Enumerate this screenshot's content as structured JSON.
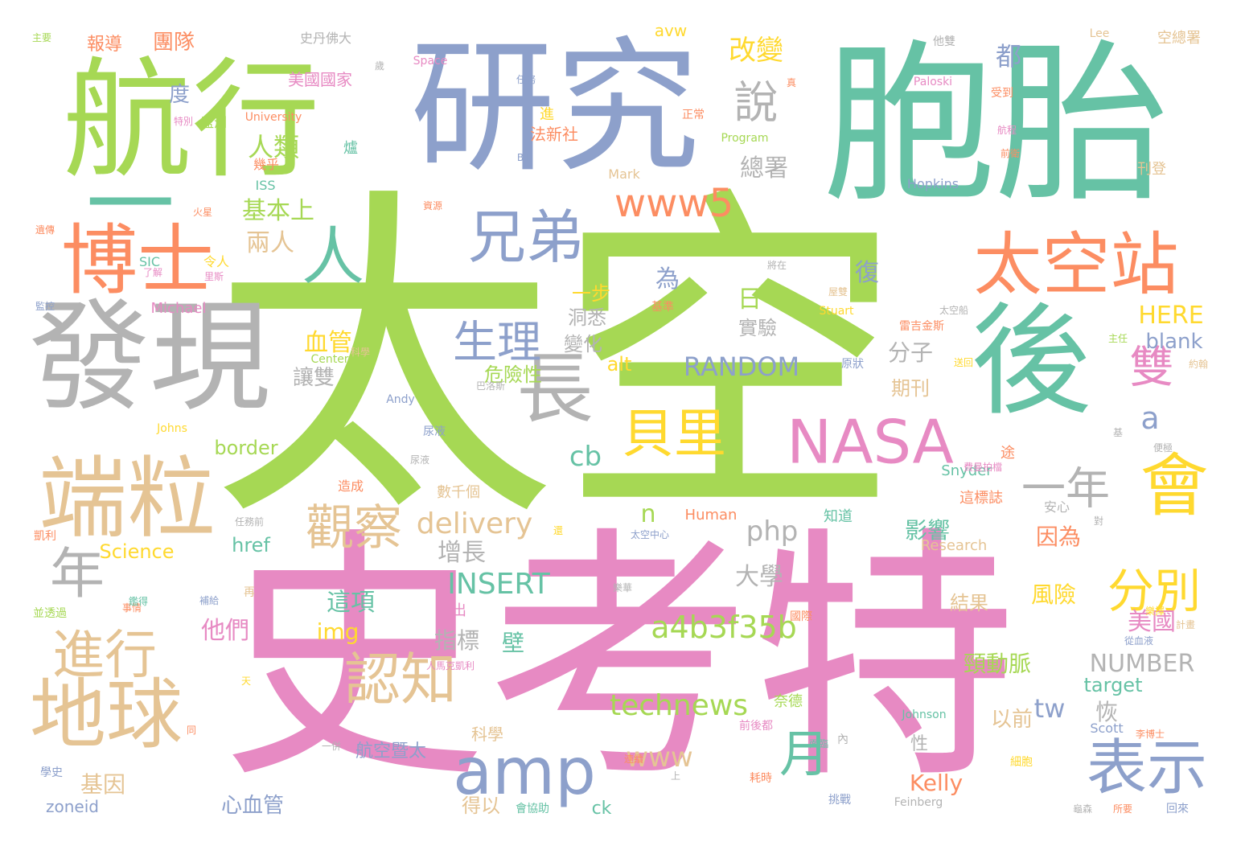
{
  "palette": {
    "green": "#a6d854",
    "purple": "#8da0cb",
    "teal": "#66c2a5",
    "orange": "#fc8d62",
    "pink": "#e78ac3",
    "tan": "#e5c494",
    "gray": "#b3b3b3",
    "yellow": "#ffd92f"
  },
  "words": [
    {
      "text": "太空",
      "color": "green"
    },
    {
      "text": "史考特",
      "color": "pink"
    },
    {
      "text": "胞胎",
      "color": "teal"
    },
    {
      "text": "研究",
      "color": "purple"
    },
    {
      "text": "航行",
      "color": "green"
    },
    {
      "text": "發現",
      "color": "gray"
    },
    {
      "text": "後",
      "color": "teal"
    },
    {
      "text": "一",
      "color": "teal"
    },
    {
      "text": "博士",
      "color": "orange"
    },
    {
      "text": "太空站",
      "color": "orange"
    },
    {
      "text": "端粒",
      "color": "tan"
    },
    {
      "text": "地球",
      "color": "tan"
    },
    {
      "text": "NASA",
      "color": "pink"
    },
    {
      "text": "amp",
      "color": "purple"
    },
    {
      "text": "會",
      "color": "yellow"
    },
    {
      "text": "長",
      "color": "gray"
    },
    {
      "text": "兄弟",
      "color": "purple"
    },
    {
      "text": "表示",
      "color": "purple"
    },
    {
      "text": "認知",
      "color": "tan"
    },
    {
      "text": "進行",
      "color": "tan"
    },
    {
      "text": "貝里",
      "color": "yellow"
    },
    {
      "text": "人",
      "color": "teal"
    },
    {
      "text": "年",
      "color": "gray"
    },
    {
      "text": "www5",
      "color": "orange"
    },
    {
      "text": "觀察",
      "color": "tan"
    },
    {
      "text": "一年",
      "color": "gray"
    },
    {
      "text": "月",
      "color": "teal"
    },
    {
      "text": "分別",
      "color": "yellow"
    },
    {
      "text": "生理",
      "color": "purple"
    },
    {
      "text": "說",
      "color": "gray"
    },
    {
      "text": "雙",
      "color": "pink"
    },
    {
      "text": "a4b3f35b",
      "color": "green"
    },
    {
      "text": "delivery",
      "color": "tan"
    },
    {
      "text": "INSERT",
      "color": "teal"
    },
    {
      "text": "technews",
      "color": "green"
    },
    {
      "text": "RANDOM",
      "color": "purple"
    },
    {
      "text": "NUMBER",
      "color": "gray"
    },
    {
      "text": "php",
      "color": "gray"
    },
    {
      "text": "www",
      "color": "tan"
    },
    {
      "text": "tw",
      "color": "purple"
    },
    {
      "text": "cb",
      "color": "teal"
    },
    {
      "text": "a",
      "color": "purple"
    },
    {
      "text": "n",
      "color": "green"
    },
    {
      "text": "改變",
      "color": "yellow"
    },
    {
      "text": "人類",
      "color": "green"
    },
    {
      "text": "基本上",
      "color": "green"
    },
    {
      "text": "兩人",
      "color": "tan"
    },
    {
      "text": "總署",
      "color": "gray"
    },
    {
      "text": "都",
      "color": "purple"
    },
    {
      "text": "復",
      "color": "purple"
    },
    {
      "text": "為",
      "color": "purple"
    },
    {
      "text": "日",
      "color": "green"
    },
    {
      "text": "血管",
      "color": "yellow"
    },
    {
      "text": "讓雙",
      "color": "gray"
    },
    {
      "text": "一步",
      "color": "yellow"
    },
    {
      "text": "洞悉",
      "color": "gray"
    },
    {
      "text": "變化",
      "color": "gray"
    },
    {
      "text": "實驗",
      "color": "gray"
    },
    {
      "text": "危險性",
      "color": "green"
    },
    {
      "text": "HERE",
      "color": "yellow"
    },
    {
      "text": "blank",
      "color": "purple"
    },
    {
      "text": "alt",
      "color": "yellow"
    },
    {
      "text": "分子",
      "color": "gray"
    },
    {
      "text": "期刊",
      "color": "tan"
    },
    {
      "text": "影響",
      "color": "teal"
    },
    {
      "text": "因為",
      "color": "orange"
    },
    {
      "text": "增長",
      "color": "gray"
    },
    {
      "text": "大學",
      "color": "gray"
    },
    {
      "text": "這項",
      "color": "teal"
    },
    {
      "text": "他們",
      "color": "pink"
    },
    {
      "text": "img",
      "color": "yellow"
    },
    {
      "text": "指標",
      "color": "gray"
    },
    {
      "text": "壁",
      "color": "teal"
    },
    {
      "text": "美國",
      "color": "pink"
    },
    {
      "text": "風險",
      "color": "yellow"
    },
    {
      "text": "結果",
      "color": "tan"
    },
    {
      "text": "頸動脈",
      "color": "green"
    },
    {
      "text": "恢",
      "color": "gray"
    },
    {
      "text": "以前",
      "color": "tan"
    },
    {
      "text": "target",
      "color": "teal"
    },
    {
      "text": "border",
      "color": "green"
    },
    {
      "text": "href",
      "color": "teal"
    },
    {
      "text": "Science",
      "color": "yellow"
    },
    {
      "text": "Kelly",
      "color": "orange"
    },
    {
      "text": "基因",
      "color": "tan"
    },
    {
      "text": "心血管",
      "color": "purple"
    },
    {
      "text": "zoneid",
      "color": "purple"
    },
    {
      "text": "得以",
      "color": "tan"
    },
    {
      "text": "ck",
      "color": "teal"
    },
    {
      "text": "科學",
      "color": "tan"
    },
    {
      "text": "航空暨太",
      "color": "purple"
    },
    {
      "text": "性",
      "color": "gray"
    },
    {
      "text": "團隊",
      "color": "orange"
    },
    {
      "text": "報導",
      "color": "orange"
    },
    {
      "text": "度",
      "color": "purple"
    },
    {
      "text": "美國國家",
      "color": "pink"
    },
    {
      "text": "avw",
      "color": "yellow"
    },
    {
      "text": "法新社",
      "color": "orange"
    },
    {
      "text": "監測",
      "color": "green"
    },
    {
      "text": "幾乎",
      "color": "orange"
    },
    {
      "text": "ISS",
      "color": "teal"
    },
    {
      "text": "令人",
      "color": "yellow"
    },
    {
      "text": "Michael",
      "color": "pink"
    },
    {
      "text": "Human",
      "color": "orange"
    },
    {
      "text": "知道",
      "color": "teal"
    },
    {
      "text": "數千個",
      "color": "tan"
    },
    {
      "text": "造成",
      "color": "orange"
    },
    {
      "text": "Research",
      "color": "tan"
    },
    {
      "text": "Snyder",
      "color": "teal"
    },
    {
      "text": "這標誌",
      "color": "orange"
    },
    {
      "text": "安心",
      "color": "gray"
    },
    {
      "text": "Hopkins",
      "color": "purple"
    },
    {
      "text": "Mark",
      "color": "tan"
    },
    {
      "text": "刊登",
      "color": "tan"
    },
    {
      "text": "史丹佛大",
      "color": "gray"
    },
    {
      "text": "Lee",
      "color": "tan"
    },
    {
      "text": "空總署",
      "color": "tan"
    },
    {
      "text": "他雙",
      "color": "gray"
    },
    {
      "text": "Paloski",
      "color": "pink"
    },
    {
      "text": "受到",
      "color": "orange"
    },
    {
      "text": "University",
      "color": "orange"
    },
    {
      "text": "Space",
      "color": "pink"
    },
    {
      "text": "Program",
      "color": "green"
    },
    {
      "text": "Stuart",
      "color": "yellow"
    },
    {
      "text": "Center",
      "color": "green"
    },
    {
      "text": "原狀",
      "color": "purple"
    },
    {
      "text": "Andy",
      "color": "purple"
    },
    {
      "text": "Johns",
      "color": "yellow"
    },
    {
      "text": "尿液",
      "color": "purple"
    },
    {
      "text": "Johnson",
      "color": "teal"
    },
    {
      "text": "Scott",
      "color": "purple"
    },
    {
      "text": "Feinberg",
      "color": "gray"
    },
    {
      "text": "主要",
      "color": "green"
    },
    {
      "text": "正常",
      "color": "orange"
    },
    {
      "text": "進",
      "color": "yellow"
    },
    {
      "text": "爐",
      "color": "teal"
    },
    {
      "text": "任務",
      "color": "purple"
    },
    {
      "text": "特別",
      "color": "pink"
    },
    {
      "text": "火星",
      "color": "orange"
    },
    {
      "text": "遺傳",
      "color": "orange"
    },
    {
      "text": "了解",
      "color": "pink"
    },
    {
      "text": "里斯",
      "color": "pink"
    },
    {
      "text": "監控",
      "color": "purple"
    },
    {
      "text": "資源",
      "color": "orange"
    },
    {
      "text": "將在",
      "color": "gray"
    },
    {
      "text": "基準",
      "color": "orange"
    },
    {
      "text": "雷吉金斯",
      "color": "orange"
    },
    {
      "text": "主任",
      "color": "green"
    },
    {
      "text": "約翰",
      "color": "tan"
    },
    {
      "text": "巴洛斯",
      "color": "gray"
    },
    {
      "text": "送回",
      "color": "yellow"
    },
    {
      "text": "途",
      "color": "orange"
    },
    {
      "text": "便極",
      "color": "gray"
    },
    {
      "text": "凱利",
      "color": "orange"
    },
    {
      "text": "任務前",
      "color": "gray"
    },
    {
      "text": "太空中心",
      "color": "purple"
    },
    {
      "text": "並透過",
      "color": "green"
    },
    {
      "text": "補給",
      "color": "purple"
    },
    {
      "text": "再",
      "color": "tan"
    },
    {
      "text": "事情",
      "color": "orange"
    },
    {
      "text": "日出",
      "color": "pink"
    },
    {
      "text": "國際",
      "color": "orange"
    },
    {
      "text": "計畫",
      "color": "tan"
    },
    {
      "text": "從血液",
      "color": "purple"
    },
    {
      "text": "學史",
      "color": "purple"
    },
    {
      "text": "一併",
      "color": "gray"
    },
    {
      "text": "面臨",
      "color": "teal"
    },
    {
      "text": "連續",
      "color": "orange"
    },
    {
      "text": "上",
      "color": "gray"
    },
    {
      "text": "耗時",
      "color": "orange"
    },
    {
      "text": "挑戰",
      "color": "purple"
    },
    {
      "text": "會協助",
      "color": "teal"
    },
    {
      "text": "所要",
      "color": "orange"
    },
    {
      "text": "回來",
      "color": "purple"
    },
    {
      "text": "奈德",
      "color": "green"
    },
    {
      "text": "前後都",
      "color": "pink"
    },
    {
      "text": "李博士",
      "color": "orange"
    },
    {
      "text": "細胞",
      "color": "yellow"
    },
    {
      "text": "人馬克凱利",
      "color": "pink"
    },
    {
      "text": "天",
      "color": "yellow"
    },
    {
      "text": "內",
      "color": "gray"
    },
    {
      "text": "航程",
      "color": "pink"
    },
    {
      "text": "Bill",
      "color": "purple"
    },
    {
      "text": "SIC",
      "color": "teal"
    },
    {
      "text": "歲",
      "color": "gray"
    },
    {
      "text": "真",
      "color": "orange"
    },
    {
      "text": "前衛",
      "color": "orange"
    },
    {
      "text": "基",
      "color": "gray"
    },
    {
      "text": "對",
      "color": "gray"
    },
    {
      "text": "費曼拍檔",
      "color": "pink"
    },
    {
      "text": "屋雙",
      "color": "tan"
    },
    {
      "text": "太空船",
      "color": "gray"
    },
    {
      "text": "鑑得",
      "color": "teal"
    },
    {
      "text": "還",
      "color": "yellow"
    },
    {
      "text": "樂擇",
      "color": "yellow"
    },
    {
      "text": "樂華",
      "color": "gray"
    },
    {
      "text": "同",
      "color": "orange"
    },
    {
      "text": "龜森",
      "color": "gray"
    },
    {
      "text": "科學",
      "color": "tan"
    },
    {
      "text": "尿液",
      "color": "gray"
    }
  ]
}
